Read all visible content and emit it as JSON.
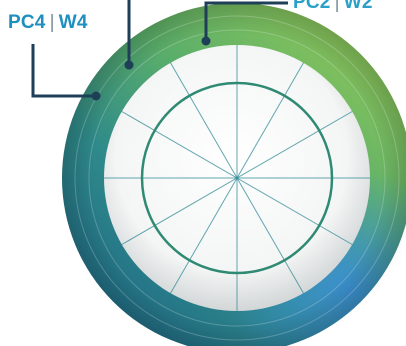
{
  "labels": {
    "left": {
      "pc": "PC4",
      "sep": "|",
      "w": "W4"
    },
    "right": {
      "pc": "PC2",
      "sep": "|",
      "w": "W2"
    }
  },
  "colors": {
    "callout_line": "#1e3f57",
    "ring_green": "#6fb454",
    "ring_teal": "#2c7d8e",
    "ring_blue": "#3d8fc8",
    "label_blue": "#1f8fbf",
    "center_line": "#2f8a96"
  }
}
